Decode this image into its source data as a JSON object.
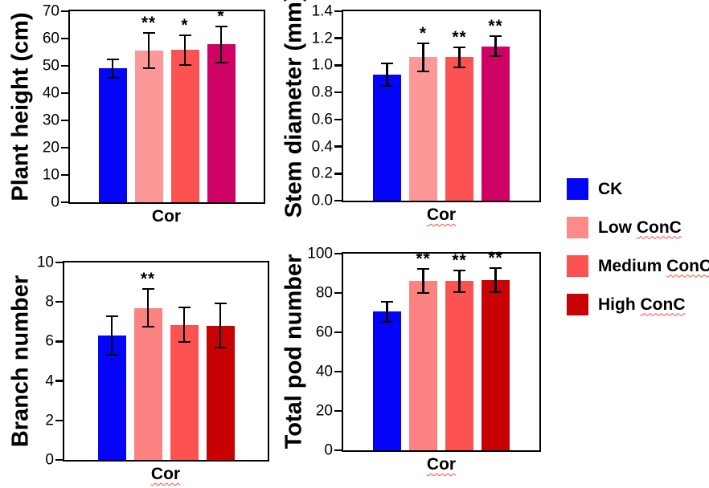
{
  "figure": {
    "legend": {
      "position": "right",
      "items": [
        {
          "name": "CK",
          "prefix": "CK",
          "wavy": "",
          "color": "#0404F8"
        },
        {
          "name": "Low ConC",
          "prefix": "Low ",
          "wavy": "ConC",
          "color": "#FC8A8A"
        },
        {
          "name": "Medium ConC",
          "prefix": "Medium ",
          "wavy": "ConC",
          "color": "#FC5252"
        },
        {
          "name": "High ConC",
          "prefix": "High ",
          "wavy": "ConC",
          "color": "#C80202"
        }
      ]
    }
  },
  "chart_data": [
    {
      "type": "bar",
      "title": "",
      "ylabel": "Plant height (cm)",
      "xlabel": "Cor",
      "xlabel_wavy": false,
      "ylim": [
        0,
        70
      ],
      "ytick_labels": [
        "0",
        "10",
        "20",
        "30",
        "40",
        "50",
        "60",
        "70"
      ],
      "ytick_values": [
        0,
        10,
        20,
        30,
        40,
        50,
        60,
        70
      ],
      "grid": false,
      "categories": [
        "CK",
        "Low ConC",
        "Medium ConC",
        "High ConC"
      ],
      "values": [
        49,
        55.5,
        55.8,
        57.8
      ],
      "errors": [
        3.7,
        6.8,
        5.7,
        6.9
      ],
      "significance": [
        "",
        "**",
        "*",
        "*"
      ],
      "bar_colors": [
        "#0404F8",
        "#FC9898",
        "#FC5252",
        "#CE0264"
      ]
    },
    {
      "type": "bar",
      "title": "",
      "ylabel": "Stem diameter (mm)",
      "xlabel": "Cor",
      "xlabel_wavy": true,
      "ylim": [
        0,
        1.4
      ],
      "ytick_labels": [
        "0.0",
        "0.2",
        "0.4",
        "0.6",
        "0.8",
        "1.0",
        "1.2",
        "1.4"
      ],
      "ytick_values": [
        0,
        0.2,
        0.4,
        0.6,
        0.8,
        1.0,
        1.2,
        1.4
      ],
      "grid": false,
      "categories": [
        "CK",
        "Low ConC",
        "Medium ConC",
        "High ConC"
      ],
      "values": [
        0.93,
        1.06,
        1.06,
        1.14
      ],
      "errors": [
        0.09,
        0.11,
        0.08,
        0.08
      ],
      "significance": [
        "",
        "*",
        "**",
        "**"
      ],
      "bar_colors": [
        "#0404F8",
        "#FC9898",
        "#FC5252",
        "#CE0264"
      ]
    },
    {
      "type": "bar",
      "title": "",
      "ylabel": "Branch number",
      "xlabel": "Cor",
      "xlabel_wavy": true,
      "ylim": [
        0,
        10
      ],
      "ytick_labels": [
        "0",
        "2",
        "4",
        "6",
        "8",
        "10"
      ],
      "ytick_values": [
        0,
        2,
        4,
        6,
        8,
        10
      ],
      "grid": false,
      "categories": [
        "CK",
        "Low ConC",
        "Medium ConC",
        "High ConC"
      ],
      "values": [
        6.3,
        7.7,
        6.85,
        6.8
      ],
      "errors": [
        1.0,
        1.0,
        0.9,
        1.15
      ],
      "significance": [
        "",
        "**",
        "",
        ""
      ],
      "bar_colors": [
        "#0404F8",
        "#FC8282",
        "#FC5252",
        "#C80202"
      ]
    },
    {
      "type": "bar",
      "title": "",
      "ylabel": "Total pod number",
      "xlabel": "Cor",
      "xlabel_wavy": true,
      "ylim": [
        0,
        100
      ],
      "ytick_labels": [
        "0",
        "20",
        "40",
        "60",
        "80",
        "100"
      ],
      "ytick_values": [
        0,
        20,
        40,
        60,
        80,
        100
      ],
      "grid": false,
      "categories": [
        "CK",
        "Low ConC",
        "Medium ConC",
        "High ConC"
      ],
      "values": [
        70.5,
        86,
        86,
        86.5
      ],
      "errors": [
        5.5,
        6.5,
        6,
        6.5
      ],
      "significance": [
        "",
        "**",
        "**",
        "**"
      ],
      "bar_colors": [
        "#0404F8",
        "#FC8282",
        "#FC5252",
        "#C80202"
      ]
    }
  ]
}
